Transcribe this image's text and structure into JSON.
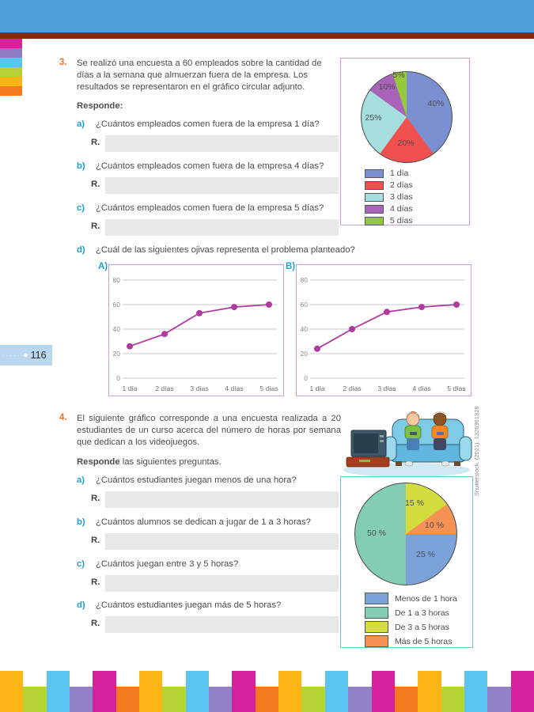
{
  "page_number": "116",
  "credit": "Shutterstock. (2021). 1326361328",
  "exercise3": {
    "number": "3.",
    "statement": "Se realizó una encuesta a 60 empleados sobre la cantidad de días a la semana que almuerzan fuera de la empresa. Los resultados se representaron en el gráfico circular adjunto.",
    "responde": "Responde:",
    "questions": [
      {
        "letter": "a)",
        "text": "¿Cuántos empleados comen fuera de la empresa 1 día?",
        "r": "R."
      },
      {
        "letter": "b)",
        "text": "¿Cuántos empleados comen fuera de la empresa 4 días?",
        "r": "R."
      },
      {
        "letter": "c)",
        "text": "¿Cuántos empleados comen fuera de la empresa 5 días?",
        "r": "R."
      },
      {
        "letter": "d)",
        "text": "¿Cuál de las siguientes ojivas representa el problema planteado?"
      }
    ]
  },
  "exercise4": {
    "number": "4.",
    "statement": "El siguiente gráfico corresponde a una encuesta realizada a 20 estudiantes de un curso acerca del número de horas por semana que dedican a los videojuegos.",
    "responde_bold": "Responde",
    "responde_rest": " las siguientes preguntas.",
    "questions": [
      {
        "letter": "a)",
        "text": "¿Cuántos estudiantes juegan menos de una hora?",
        "r": "R."
      },
      {
        "letter": "b)",
        "text": "¿Cuántos alumnos se dedican a jugar de 1 a 3 horas?",
        "r": "R."
      },
      {
        "letter": "c)",
        "text": "¿Cuántos juegan entre 3 y 5 horas?",
        "r": "R."
      },
      {
        "letter": "d)",
        "text": "¿Cuántos estudiantes juegan más de 5 horas?",
        "r": "R."
      }
    ]
  },
  "chart_data": [
    {
      "id": "pie-dias-fuera",
      "type": "pie",
      "labels": [
        "1 día",
        "2 días",
        "3 días",
        "4 días",
        "5 días"
      ],
      "values_percent": [
        40,
        20,
        25,
        10,
        5
      ],
      "value_labels": [
        "40%",
        "20%",
        "25%",
        "10%",
        "5%"
      ],
      "colors": [
        "#7b90d0",
        "#f0504e",
        "#a5dfe0",
        "#a963b8",
        "#95c93d"
      ],
      "draw_order": [
        0,
        1,
        2,
        3,
        4
      ],
      "start_angle_deg": 0,
      "direction": "clockwise",
      "legend_position": "bottom",
      "total_surveyed": 60
    },
    {
      "id": "ogive-a",
      "type": "line",
      "label": "A)",
      "categories": [
        "1 día",
        "2 días",
        "3 días",
        "4 días",
        "5 días"
      ],
      "values": [
        26,
        36,
        53,
        58,
        60
      ],
      "yticks": [
        0,
        20,
        40,
        60,
        80
      ],
      "ylim": [
        0,
        88
      ],
      "grid": true,
      "line_color": "#b13a9e"
    },
    {
      "id": "ogive-b",
      "type": "line",
      "label": "B)",
      "categories": [
        "1 día",
        "2 días",
        "3 días",
        "4 días",
        "5 días"
      ],
      "values": [
        24,
        40,
        54,
        58,
        60
      ],
      "yticks": [
        0,
        20,
        40,
        60,
        80
      ],
      "ylim": [
        0,
        88
      ],
      "grid": true,
      "line_color": "#b13a9e"
    },
    {
      "id": "pie-horas-videojuegos",
      "type": "pie",
      "labels": [
        "Menos de 1 hora",
        "De 1 a 3 horas",
        "De 3 a 5 horas",
        "Más de 5 horas"
      ],
      "values_percent": [
        25,
        50,
        15,
        10
      ],
      "value_labels": [
        "25 %",
        "50 %",
        "15 %",
        "10 %"
      ],
      "colors": [
        "#7ba3d9",
        "#82cdb4",
        "#d3dd3e",
        "#f69254"
      ],
      "draw_order": [
        2,
        3,
        0,
        1
      ],
      "start_angle_deg": 0,
      "direction": "clockwise",
      "legend_position": "bottom",
      "total_surveyed": 20
    }
  ],
  "side_tab_colors": [
    "#d6219c",
    "#8b7cc3",
    "#5bc5f2",
    "#b5d334",
    "#fcb514",
    "#f47b20"
  ],
  "footer_palette": [
    "#fcb514",
    "#b5d334",
    "#5bc5f2",
    "#9283c6",
    "#d6219c",
    "#f47b20"
  ]
}
